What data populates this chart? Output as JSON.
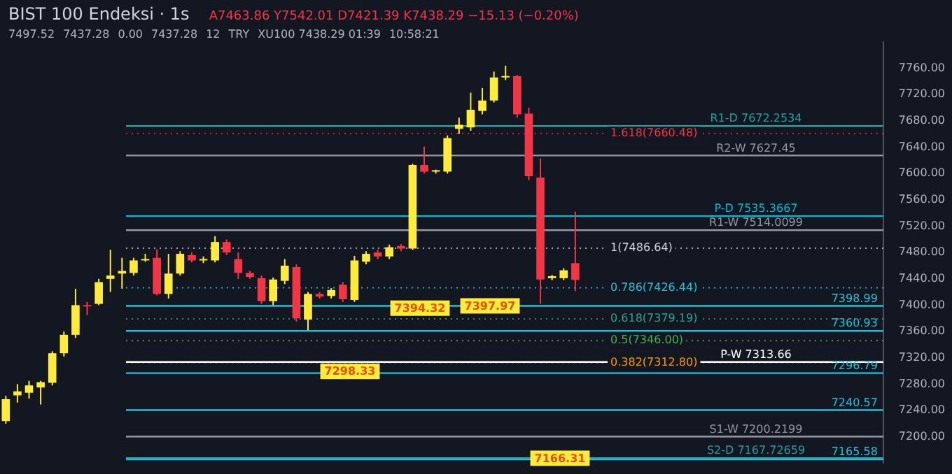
{
  "chart_data": {
    "type": "candlestick",
    "title": "BIST 100 Endeksi · 1s",
    "subtitle": "A7463.86 Y7542.01 D7421.39 K7438.29 −15.13 (−0.20%)",
    "categories": [
      null,
      null,
      null,
      null,
      null,
      null,
      null,
      null,
      null,
      null,
      null,
      null,
      null,
      null,
      null,
      null,
      null,
      null,
      null,
      null,
      null,
      null,
      null,
      null,
      null,
      null,
      null,
      null,
      null,
      null,
      null,
      null,
      null,
      null,
      null,
      null,
      null,
      null,
      null,
      null,
      null,
      null,
      null,
      null,
      null,
      null,
      null,
      null,
      null,
      null,
      null,
      null,
      null,
      null,
      null,
      null,
      null,
      null,
      null,
      null,
      null,
      null,
      null,
      null,
      null,
      null,
      null,
      null,
      null,
      null,
      null,
      null,
      null,
      null,
      null,
      null
    ],
    "ohlc": [
      [
        7224,
        7262,
        7220,
        7257
      ],
      [
        7263,
        7280,
        7252,
        7269
      ],
      [
        7267,
        7285,
        7258,
        7278
      ],
      [
        7275,
        7285,
        7249,
        7283
      ],
      [
        7282,
        7330,
        7278,
        7327
      ],
      [
        7327,
        7360,
        7322,
        7355
      ],
      [
        7355,
        7425,
        7350,
        7400
      ],
      [
        7400,
        7405,
        7385,
        7398
      ],
      [
        7402,
        7440,
        7400,
        7435
      ],
      [
        7440,
        7484,
        7420,
        7445
      ],
      [
        7448,
        7472,
        7425,
        7452
      ],
      [
        7449,
        7472,
        7445,
        7468
      ],
      [
        7468,
        7478,
        7466,
        7470
      ],
      [
        7472,
        7485,
        7415,
        7417
      ],
      [
        7417,
        7478,
        7410,
        7448
      ],
      [
        7448,
        7482,
        7445,
        7478
      ],
      [
        7476,
        7480,
        7465,
        7468
      ],
      [
        7468,
        7474,
        7464,
        7470
      ],
      [
        7468,
        7505,
        7465,
        7496
      ],
      [
        7496,
        7500,
        7476,
        7480
      ],
      [
        7470,
        7480,
        7440,
        7449
      ],
      [
        7449,
        7452,
        7440,
        7443
      ],
      [
        7441,
        7445,
        7402,
        7406
      ],
      [
        7406,
        7442,
        7400,
        7439
      ],
      [
        7437,
        7470,
        7432,
        7460
      ],
      [
        7458,
        7462,
        7375,
        7380
      ],
      [
        7378,
        7420,
        7362,
        7417
      ],
      [
        7417,
        7420,
        7410,
        7413
      ],
      [
        7414,
        7426,
        7410,
        7423
      ],
      [
        7431,
        7435,
        7405,
        7409
      ],
      [
        7408,
        7475,
        7405,
        7468
      ],
      [
        7466,
        7482,
        7462,
        7478
      ],
      [
        7480,
        7484,
        7470,
        7474
      ],
      [
        7474,
        7492,
        7470,
        7488
      ],
      [
        7490,
        7493,
        7482,
        7486
      ],
      [
        7486,
        7615,
        7484,
        7613
      ],
      [
        7613,
        7641,
        7600,
        7603
      ],
      [
        7603,
        7606,
        7600,
        7604
      ],
      [
        7603,
        7658,
        7600,
        7654
      ],
      [
        7668,
        7685,
        7660,
        7674
      ],
      [
        7670,
        7723,
        7665,
        7697
      ],
      [
        7695,
        7730,
        7690,
        7711
      ],
      [
        7711,
        7755,
        7708,
        7746
      ],
      [
        7746,
        7764,
        7742,
        7747
      ],
      [
        7748,
        7750,
        7685,
        7690
      ],
      [
        7691,
        7700,
        7590,
        7596
      ],
      [
        7594,
        7623,
        7402,
        7439
      ],
      [
        7441,
        7446,
        7438,
        7444
      ],
      [
        7441,
        7456,
        7438,
        7453
      ],
      [
        7463.86,
        7542.01,
        7421.39,
        7438.29
      ],
      null,
      null,
      null,
      null,
      null,
      null,
      null,
      null,
      null,
      null,
      null,
      null,
      null,
      null,
      null,
      null,
      null,
      null,
      null,
      null,
      null,
      null,
      null,
      null,
      null,
      null
    ],
    "colors": [
      "#ffeb3b",
      "#ffeb3b",
      "#ffeb3b",
      "#ffeb3b",
      "#ffeb3b",
      "#ffeb3b",
      "#ffeb3b",
      "#f23645",
      "#ffeb3b",
      "#ffeb3b",
      "#ffeb3b",
      "#ffeb3b",
      "#ffeb3b",
      "#f23645",
      "#ffeb3b",
      "#ffeb3b",
      "#f23645",
      "#ffeb3b",
      "#ffeb3b",
      "#f23645",
      "#f23645",
      "#f23645",
      "#f23645",
      "#ffeb3b",
      "#ffeb3b",
      "#f23645",
      "#ffeb3b",
      "#f23645",
      "#ffeb3b",
      "#f23645",
      "#ffeb3b",
      "#ffeb3b",
      "#f23645",
      "#ffeb3b",
      "#f23645",
      "#ffeb3b",
      "#f23645",
      "#ffeb3b",
      "#ffeb3b",
      "#ffeb3b",
      "#ffeb3b",
      "#ffeb3b",
      "#ffeb3b",
      "#ffeb3b",
      "#f23645",
      "#f23645",
      "#f23645",
      "#ffeb3b",
      "#ffeb3b",
      "#f23645",
      null,
      null,
      null,
      null,
      null,
      null,
      null,
      null,
      null,
      null,
      null,
      null,
      null,
      null,
      null,
      null,
      null,
      null,
      null,
      null,
      null,
      null,
      null,
      null,
      null,
      null
    ],
    "ylim": [
      7160,
      7800
    ],
    "yticks": [
      {
        "value": 7200,
        "label": "7200.00"
      },
      {
        "value": 7240,
        "label": "7240.00"
      },
      {
        "value": 7280,
        "label": "7280.00"
      },
      {
        "value": 7320,
        "label": "7320.00"
      },
      {
        "value": 7360,
        "label": "7360.00"
      },
      {
        "value": 7400,
        "label": "7400.00"
      },
      {
        "value": 7440,
        "label": "7440.00"
      },
      {
        "value": 7480,
        "label": "7480.00"
      },
      {
        "value": 7520,
        "label": "7520.00"
      },
      {
        "value": 7560,
        "label": "7560.00"
      },
      {
        "value": 7600,
        "label": "7600.00"
      },
      {
        "value": 7640,
        "label": "7640.00"
      },
      {
        "value": 7680,
        "label": "7680.00"
      },
      {
        "value": 7720,
        "label": "7720.00"
      },
      {
        "value": 7760,
        "label": "7760.00"
      }
    ],
    "tick_labels": "y",
    "ref_lines": [
      {
        "axis": "y",
        "value": 7660.48,
        "label": "1.618(7660.48)",
        "color": "#f23645",
        "line_style": "dotted"
      },
      {
        "axis": "y",
        "value": 7486.64,
        "label": "1(7486.64)",
        "color": "#d1d4dc",
        "line_style": "dotted"
      },
      {
        "axis": "y",
        "value": 7426.44,
        "label": "0.786(7426.44)",
        "color": "#22c1d6",
        "line_style": "dotted"
      },
      {
        "axis": "y",
        "value": 7379.19,
        "label": "0.618(7379.19)",
        "color": "#26a69a",
        "line_style": "dotted"
      },
      {
        "axis": "y",
        "value": 7346,
        "label": "0.5(7346.00)",
        "color": "#4caf50",
        "line_style": "dotted"
      },
      {
        "axis": "y",
        "value": 7312.8,
        "label": "0.382(7312.80)",
        "color": "#ff9800",
        "line_style": "dotted"
      },
      {
        "axis": "y",
        "value": 7672.2534,
        "label": "R1-D 7672.2534",
        "color": "#2a9d9f"
      },
      {
        "axis": "y",
        "value": 7627.45,
        "label": "R2-W 7627.45",
        "color": "#9598a1"
      },
      {
        "axis": "y",
        "value": 7535.3667,
        "label": "P-D 7535.3667",
        "color": "#00bcd4"
      },
      {
        "axis": "y",
        "value": 7514.0099,
        "label": "R1-W 7514.0099",
        "color": "#9598a1"
      },
      {
        "axis": "y",
        "value": 7398.99,
        "label": "7398.99",
        "color": "#22c1d6"
      },
      {
        "axis": "y",
        "value": 7360.93,
        "label": "7360.93",
        "color": "#22c1d6"
      },
      {
        "axis": "y",
        "value": 7313.66,
        "label": "P-W 7313.66",
        "color": "#ffffff"
      },
      {
        "axis": "y",
        "value": 7296.79,
        "label": "7296.79",
        "color": "#22c1d6"
      },
      {
        "axis": "y",
        "value": 7240.57,
        "label": "7240.57",
        "color": "#22c1d6"
      },
      {
        "axis": "y",
        "value": 7200.2199,
        "label": "S1-W 7200.2199",
        "color": "#9598a1"
      },
      {
        "axis": "y",
        "value": 7167.72659,
        "label": "S2-D 7167.72659",
        "color": "#2a9d9f"
      },
      {
        "axis": "y",
        "value": 7165.58,
        "label": "7165.58",
        "color": "#22c1d6"
      }
    ],
    "annotations": [
      "7497.52",
      "7437.28",
      "0.00",
      "7437.28",
      "12",
      "TRY",
      "XU100 7438.29 01:39",
      "10:58:21",
      {
        "text": "7298.33",
        "y": 7298.33
      },
      {
        "text": "7397.97",
        "y": 7397.97
      },
      {
        "text": "7394.32",
        "y": 7394.32
      },
      {
        "text": "7166.31",
        "y": 7166.31
      }
    ]
  }
}
